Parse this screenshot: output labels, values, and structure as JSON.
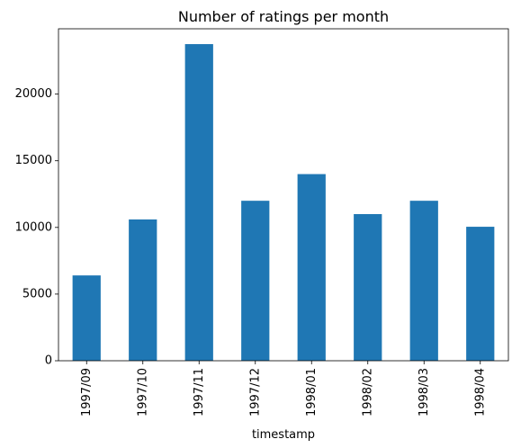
{
  "chart_data": {
    "type": "bar",
    "title": "Number of ratings per month",
    "xlabel": "timestamp",
    "ylabel": "",
    "categories": [
      "1997/09",
      "1997/10",
      "1997/11",
      "1997/12",
      "1998/01",
      "1998/02",
      "1998/03",
      "1998/04"
    ],
    "values": [
      6400,
      10600,
      23750,
      12000,
      14000,
      11000,
      12000,
      10050
    ],
    "ylim": [
      0,
      24900
    ],
    "yticks": [
      0,
      5000,
      10000,
      15000,
      20000
    ],
    "grid": false,
    "legend": "none",
    "bar_color": "#1f77b4"
  }
}
